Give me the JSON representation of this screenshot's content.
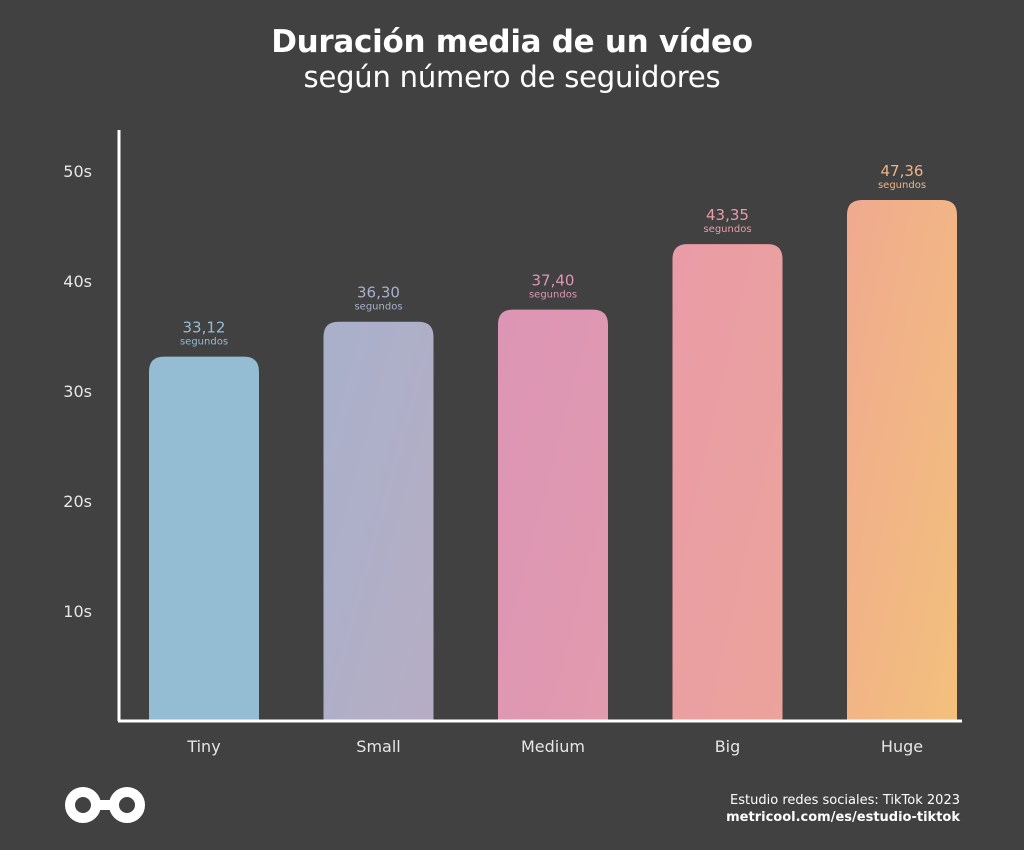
{
  "header": {
    "title": "Duración media de un vídeo",
    "subtitle": "según número de seguidores"
  },
  "footer": {
    "source_line": "Estudio redes sociales: TikTok 2023",
    "url": "metricool.com/es/estudio-tiktok",
    "logo_icon": "infinity-logo-icon"
  },
  "chart_data": {
    "type": "bar",
    "title": "Duración media de un vídeo",
    "subtitle": "según número de seguidores",
    "categories": [
      "Tiny",
      "Small",
      "Medium",
      "Big",
      "Huge"
    ],
    "values": [
      33.12,
      36.3,
      37.4,
      43.35,
      47.36
    ],
    "value_labels": [
      "33,12",
      "36,30",
      "37,40",
      "43,35",
      "47,36"
    ],
    "value_unit_label": "segundos",
    "y_ticks": [
      10,
      20,
      30,
      40,
      50
    ],
    "y_tick_labels": [
      "10s",
      "20s",
      "30s",
      "40s",
      "50s"
    ],
    "ylim": [
      0,
      50
    ],
    "grid": false,
    "legend": "none",
    "colors": {
      "axis": "#ffffff",
      "bars_top": [
        "#94bdd3",
        "#a9b0cb",
        "#dc95b5",
        "#ea9ca7",
        "#f0aa8f"
      ],
      "bars_bottom": [
        "#94bdd3",
        "#b6adc4",
        "#e29aaf",
        "#eba39b",
        "#f3c07c"
      ],
      "value_labels": [
        "#94bdd3",
        "#a9b0cb",
        "#dc95b5",
        "#ea9ca7",
        "#eeb486"
      ]
    }
  }
}
